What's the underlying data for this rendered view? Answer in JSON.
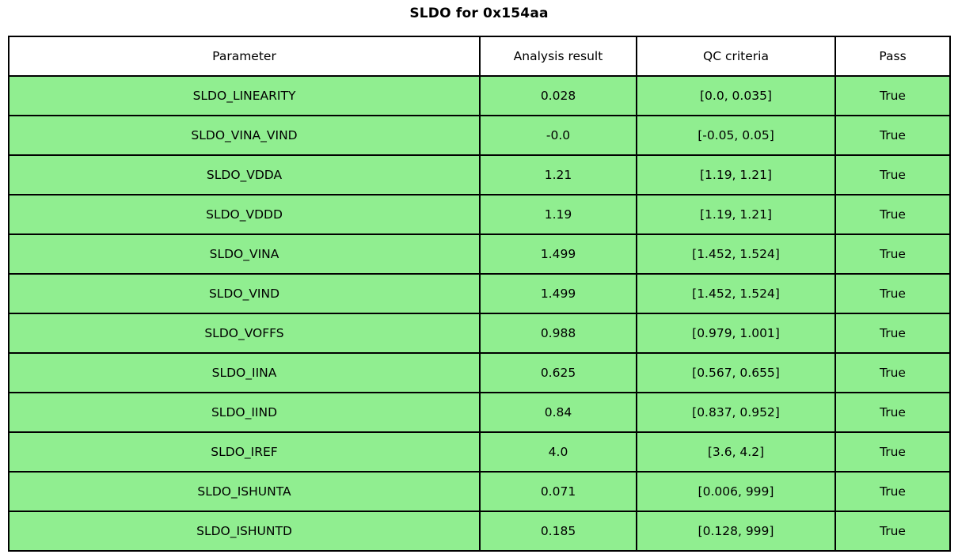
{
  "title": "SLDO for 0x154aa",
  "colors": {
    "row_bg": "#90ee90",
    "header_bg": "#ffffff",
    "border": "#000000",
    "text": "#000000"
  },
  "chart_data": {
    "type": "table",
    "title": "SLDO for 0x154aa",
    "columns": [
      "Parameter",
      "Analysis result",
      "QC criteria",
      "Pass"
    ],
    "rows": [
      [
        "SLDO_LINEARITY",
        "0.028",
        "[0.0, 0.035]",
        "True"
      ],
      [
        "SLDO_VINA_VIND",
        "-0.0",
        "[-0.05, 0.05]",
        "True"
      ],
      [
        "SLDO_VDDA",
        "1.21",
        "[1.19, 1.21]",
        "True"
      ],
      [
        "SLDO_VDDD",
        "1.19",
        "[1.19, 1.21]",
        "True"
      ],
      [
        "SLDO_VINA",
        "1.499",
        "[1.452, 1.524]",
        "True"
      ],
      [
        "SLDO_VIND",
        "1.499",
        "[1.452, 1.524]",
        "True"
      ],
      [
        "SLDO_VOFFS",
        "0.988",
        "[0.979, 1.001]",
        "True"
      ],
      [
        "SLDO_IINA",
        "0.625",
        "[0.567, 0.655]",
        "True"
      ],
      [
        "SLDO_IIND",
        "0.84",
        "[0.837, 0.952]",
        "True"
      ],
      [
        "SLDO_IREF",
        "4.0",
        "[3.6, 4.2]",
        "True"
      ],
      [
        "SLDO_ISHUNTA",
        "0.071",
        "[0.006, 999]",
        "True"
      ],
      [
        "SLDO_ISHUNTD",
        "0.185",
        "[0.128, 999]",
        "True"
      ]
    ],
    "layout": {
      "legend": "none",
      "grid": "full-cell-borders",
      "row_fill_meaning": "pass-status-green"
    }
  }
}
